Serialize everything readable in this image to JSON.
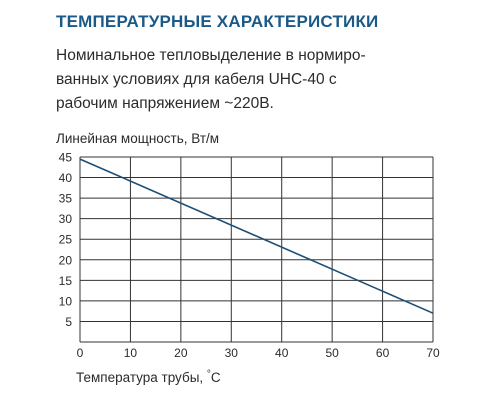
{
  "heading": "ТЕМПЕРАТУРНЫЕ ХАРАКТЕРИСТИКИ",
  "description_lines": [
    "Номинальное тепловыделение в нормиро-",
    "ванных условиях для кабеля UHC-40 с",
    "рабочим напряжением ~220В."
  ],
  "colors": {
    "heading": "#1b5a88",
    "line": "#1b4f78",
    "grid": "#333333"
  },
  "chart_data": {
    "type": "line",
    "xlabel": "Температура трубы, °С",
    "ylabel": "Линейная мощность, Вт/м",
    "xlim": [
      0,
      70
    ],
    "ylim": [
      0,
      45
    ],
    "x_ticks": [
      "0",
      "10",
      "20",
      "30",
      "40",
      "50",
      "60",
      "70"
    ],
    "y_ticks": [
      "5",
      "10",
      "15",
      "20",
      "25",
      "30",
      "35",
      "40",
      "45"
    ],
    "grid": true,
    "series": [
      {
        "x": [
          0,
          70
        ],
        "y": [
          44.5,
          7
        ]
      }
    ]
  }
}
